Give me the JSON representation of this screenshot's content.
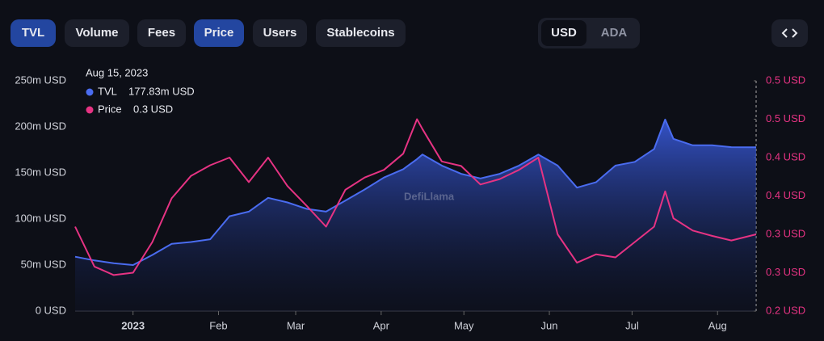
{
  "tabs": [
    "TVL",
    "Volume",
    "Fees",
    "Price",
    "Users",
    "Stablecoins"
  ],
  "active_tabs": [
    "TVL",
    "Price"
  ],
  "currencies": [
    "USD",
    "ADA"
  ],
  "active_currency": "USD",
  "chart_data": {
    "type": "line",
    "watermark": "DefiLlama",
    "tooltip": {
      "title": "Aug 15, 2023",
      "values": [
        "177.83m USD",
        "0.3 USD"
      ]
    },
    "x": [
      "2022-12-11",
      "2022-12-18",
      "2022-12-25",
      "2023-01-01",
      "2023-01-08",
      "2023-01-15",
      "2023-01-22",
      "2023-01-29",
      "2023-02-05",
      "2023-02-12",
      "2023-02-19",
      "2023-02-26",
      "2023-03-05",
      "2023-03-12",
      "2023-03-19",
      "2023-03-26",
      "2023-04-02",
      "2023-04-09",
      "2023-04-14",
      "2023-04-16",
      "2023-04-23",
      "2023-04-30",
      "2023-05-07",
      "2023-05-14",
      "2023-05-21",
      "2023-05-28",
      "2023-06-04",
      "2023-06-11",
      "2023-06-18",
      "2023-06-25",
      "2023-07-02",
      "2023-07-09",
      "2023-07-13",
      "2023-07-16",
      "2023-07-23",
      "2023-07-30",
      "2023-08-06",
      "2023-08-15"
    ],
    "series": [
      {
        "name": "TVL",
        "color": "#4a6cf0",
        "fill": true,
        "values": [
          59,
          55,
          52,
          50,
          61,
          73,
          75,
          78,
          103,
          108,
          123,
          118,
          111,
          108,
          120,
          132,
          145,
          154,
          165,
          170,
          158,
          149,
          144,
          149,
          158,
          170,
          158,
          134,
          140,
          158,
          162,
          176,
          208,
          187,
          180,
          180,
          178,
          177.83
        ]
      },
      {
        "name": "Price",
        "color": "#e63383",
        "axis": "y2",
        "values": [
          0.31,
          0.258,
          0.247,
          0.25,
          0.29,
          0.347,
          0.376,
          0.39,
          0.4,
          0.368,
          0.4,
          0.363,
          0.337,
          0.31,
          0.358,
          0.374,
          0.384,
          0.405,
          0.45,
          0.437,
          0.395,
          0.389,
          0.365,
          0.372,
          0.384,
          0.4,
          0.3,
          0.263,
          0.274,
          0.27,
          0.29,
          0.31,
          0.356,
          0.321,
          0.305,
          0.298,
          0.292,
          0.3
        ]
      }
    ],
    "xlim": [
      "2022-12-11",
      "2023-08-15"
    ],
    "xticks": [
      {
        "value": "2023-01-01",
        "label": "2023"
      },
      {
        "value": "2023-02-01",
        "label": "Feb"
      },
      {
        "value": "2023-03-01",
        "label": "Mar"
      },
      {
        "value": "2023-04-01",
        "label": "Apr"
      },
      {
        "value": "2023-05-01",
        "label": "May"
      },
      {
        "value": "2023-06-01",
        "label": "Jun"
      },
      {
        "value": "2023-07-01",
        "label": "Jul"
      },
      {
        "value": "2023-08-01",
        "label": "Aug"
      }
    ],
    "ylim": [
      0,
      250
    ],
    "yticks": [
      {
        "value": 0,
        "label": "0 USD"
      },
      {
        "value": 50,
        "label": "50m USD"
      },
      {
        "value": 100,
        "label": "100m USD"
      },
      {
        "value": 150,
        "label": "150m USD"
      },
      {
        "value": 200,
        "label": "200m USD"
      },
      {
        "value": 250,
        "label": "250m USD"
      }
    ],
    "y2lim": [
      0.2,
      0.5
    ],
    "y2ticks": [
      {
        "value": 0.2,
        "label": "0.2 USD"
      },
      {
        "value": 0.25,
        "label": "0.3 USD"
      },
      {
        "value": 0.3,
        "label": "0.3 USD"
      },
      {
        "value": 0.35,
        "label": "0.4 USD"
      },
      {
        "value": 0.4,
        "label": "0.4 USD"
      },
      {
        "value": 0.45,
        "label": "0.5 USD"
      },
      {
        "value": 0.5,
        "label": "0.5 USD"
      }
    ],
    "grid": false
  }
}
